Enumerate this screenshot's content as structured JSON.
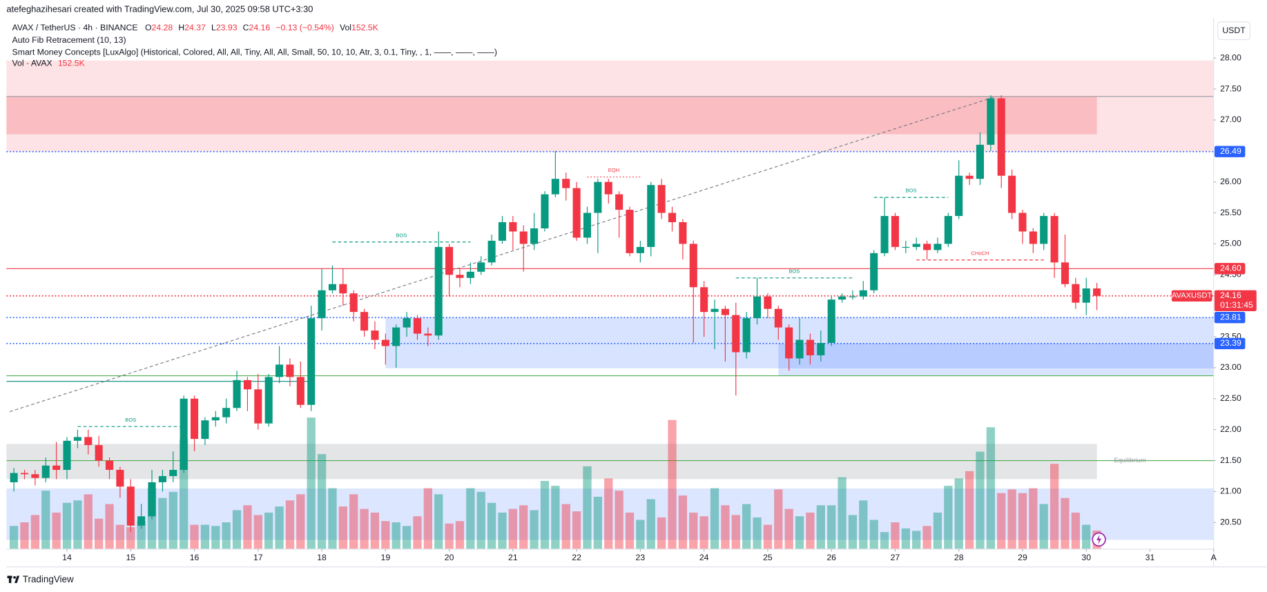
{
  "header": {
    "attribution": "atefeghazihesari created with TradingView.com, Jul 30, 2025 09:58 UTC+3:30",
    "symbol": "AVAX / TetherUS · 4h · BINANCE",
    "ohlc": [
      {
        "key": "O",
        "value": "24.28"
      },
      {
        "key": "H",
        "value": "24.37"
      },
      {
        "key": "L",
        "value": "23.93"
      },
      {
        "key": "C",
        "value": "24.16"
      }
    ],
    "change": "−0.13 (−0.54%)",
    "vol_key": "Vol",
    "vol_value": "152.5K",
    "indicators": [
      "Auto Fib Retracement (10, 13)",
      "Smart Money Concepts [LuxAlgo] (Historical, Colored, All, All, Tiny, All, All, Small, 50, 10, 10, Atr, 3, 0.1, Tiny, , 1, ——, ——, ——)"
    ],
    "vol_legend": "Vol · AVAX",
    "vol_legend_value": "152.5K"
  },
  "currency": "USDT",
  "brand": "TradingView",
  "chart_data": {
    "type": "candlestick",
    "symbol_label": "AVAXUSDT",
    "countdown": "01:31:45",
    "up_color": "#089981",
    "down_color": "#f23645",
    "open": [
      21.15,
      21.3,
      21.28,
      21.22,
      21.42,
      21.35,
      21.82,
      21.88,
      21.75,
      21.5,
      21.35,
      21.08,
      20.45,
      20.6,
      21.15,
      21.25,
      21.35,
      22.5,
      21.85,
      22.15,
      22.2,
      22.35,
      22.8,
      22.65,
      22.1,
      22.85,
      23.05,
      22.85,
      22.4,
      23.8,
      24.25,
      24.35,
      24.2,
      23.9,
      23.6,
      23.45,
      23.35,
      23.65,
      23.8,
      23.55,
      23.52,
      24.95,
      24.5,
      24.45,
      24.55,
      24.7,
      25.05,
      25.35,
      25.2,
      25.0,
      25.25,
      25.8,
      26.05,
      25.9,
      25.1,
      25.5,
      26.0,
      25.8,
      25.55,
      24.85,
      24.95,
      25.95,
      25.5,
      25.35,
      25.0,
      24.3,
      23.9,
      23.95,
      23.85,
      23.25,
      23.8,
      24.15,
      23.95,
      23.65,
      23.15,
      23.45,
      23.2,
      23.4,
      24.1,
      24.15,
      24.15,
      24.25,
      24.85,
      25.45,
      24.95,
      24.95,
      25.0,
      24.9,
      25.0,
      25.45,
      26.1,
      26.05,
      26.6,
      27.35,
      26.1,
      25.5,
      25.2,
      25.0,
      25.45,
      24.7,
      24.35,
      24.05,
      24.28
    ],
    "high": [
      21.38,
      21.35,
      21.35,
      21.55,
      21.8,
      21.88,
      22.0,
      22.0,
      21.9,
      21.55,
      21.4,
      21.2,
      20.8,
      21.35,
      21.35,
      21.65,
      22.55,
      22.55,
      22.2,
      22.3,
      22.5,
      22.95,
      22.85,
      22.9,
      22.9,
      23.35,
      23.15,
      23.1,
      24.0,
      24.6,
      24.65,
      24.6,
      24.25,
      23.95,
      23.75,
      23.55,
      23.7,
      23.9,
      23.85,
      23.65,
      25.2,
      25.0,
      24.6,
      24.7,
      24.8,
      25.15,
      25.45,
      25.45,
      25.3,
      25.5,
      25.85,
      26.5,
      26.15,
      26.0,
      25.6,
      26.05,
      26.05,
      25.85,
      25.6,
      25.05,
      26.0,
      26.05,
      25.6,
      25.4,
      25.05,
      24.4,
      24.1,
      24.0,
      24.05,
      23.9,
      24.45,
      24.2,
      24.0,
      23.7,
      23.8,
      23.55,
      23.6,
      24.15,
      24.2,
      24.25,
      24.4,
      24.9,
      25.75,
      25.5,
      25.05,
      25.1,
      25.05,
      25.1,
      25.5,
      26.35,
      26.15,
      26.8,
      27.4,
      27.4,
      26.2,
      25.55,
      25.25,
      25.5,
      25.5,
      25.15,
      24.45,
      24.45,
      24.37
    ],
    "low": [
      21.0,
      21.2,
      21.1,
      21.15,
      21.2,
      21.2,
      21.7,
      21.6,
      21.4,
      21.2,
      20.9,
      20.35,
      20.4,
      20.55,
      21.0,
      21.15,
      21.3,
      21.65,
      21.75,
      22.05,
      22.1,
      22.3,
      22.3,
      22.0,
      22.05,
      22.75,
      22.7,
      22.35,
      22.3,
      23.6,
      24.2,
      24.0,
      23.75,
      23.5,
      23.3,
      23.05,
      23.0,
      23.5,
      23.45,
      23.35,
      23.45,
      24.15,
      24.3,
      24.35,
      24.5,
      24.65,
      25.0,
      24.9,
      24.55,
      24.9,
      25.2,
      25.75,
      25.7,
      25.05,
      25.0,
      24.85,
      25.65,
      25.1,
      24.8,
      24.7,
      24.8,
      25.4,
      25.2,
      24.75,
      23.4,
      23.5,
      23.3,
      23.1,
      22.55,
      23.15,
      23.7,
      23.8,
      23.45,
      22.95,
      23.05,
      23.05,
      23.1,
      23.35,
      24.05,
      24.1,
      24.1,
      24.2,
      24.8,
      24.9,
      24.85,
      24.9,
      24.75,
      24.85,
      24.95,
      25.4,
      25.95,
      25.95,
      26.5,
      25.9,
      25.4,
      25.0,
      24.85,
      24.9,
      24.45,
      24.3,
      23.95,
      23.85,
      23.93
    ],
    "close": [
      21.3,
      21.28,
      21.22,
      21.42,
      21.35,
      21.82,
      21.88,
      21.75,
      21.5,
      21.35,
      21.08,
      20.45,
      20.6,
      21.15,
      21.25,
      21.35,
      22.5,
      21.85,
      22.15,
      22.2,
      22.35,
      22.8,
      22.65,
      22.1,
      22.85,
      23.05,
      22.85,
      22.4,
      23.8,
      24.25,
      24.35,
      24.2,
      23.9,
      23.6,
      23.45,
      23.35,
      23.65,
      23.8,
      23.55,
      23.52,
      24.95,
      24.5,
      24.45,
      24.55,
      24.7,
      25.05,
      25.35,
      25.2,
      25.0,
      25.25,
      25.8,
      26.05,
      25.9,
      25.1,
      25.5,
      26.0,
      25.8,
      25.55,
      24.85,
      24.95,
      25.95,
      25.5,
      25.35,
      25.0,
      24.3,
      23.9,
      23.95,
      23.85,
      23.25,
      23.8,
      24.15,
      23.95,
      23.65,
      23.15,
      23.45,
      23.2,
      23.4,
      24.1,
      24.15,
      24.15,
      24.25,
      24.85,
      25.45,
      24.95,
      24.95,
      25.0,
      24.9,
      25.0,
      25.45,
      26.1,
      26.05,
      26.6,
      27.35,
      26.1,
      25.5,
      25.2,
      25.0,
      25.45,
      24.7,
      24.35,
      24.05,
      24.28,
      24.16
    ],
    "volume": [
      190000,
      220000,
      280000,
      480000,
      300000,
      380000,
      400000,
      450000,
      250000,
      370000,
      200000,
      180000,
      230000,
      500000,
      420000,
      470000,
      900000,
      200000,
      200000,
      190000,
      220000,
      320000,
      360000,
      280000,
      300000,
      350000,
      400000,
      450000,
      1080000,
      780000,
      500000,
      350000,
      450000,
      330000,
      300000,
      230000,
      220000,
      190000,
      270000,
      500000,
      450000,
      210000,
      230000,
      500000,
      470000,
      380000,
      300000,
      330000,
      360000,
      320000,
      560000,
      520000,
      370000,
      310000,
      680000,
      430000,
      580000,
      480000,
      300000,
      240000,
      410000,
      260000,
      1060000,
      440000,
      300000,
      270000,
      500000,
      360000,
      280000,
      370000,
      260000,
      200000,
      490000,
      330000,
      270000,
      300000,
      360000,
      360000,
      590000,
      280000,
      400000,
      240000,
      140000,
      220000,
      170000,
      150000,
      190000,
      300000,
      520000,
      580000,
      640000,
      800000,
      1000000,
      460000,
      490000,
      460000,
      500000,
      370000,
      700000,
      420000,
      300000,
      200000,
      152500
    ],
    "xlim": [
      -0.7,
      113
    ],
    "ylim": [
      20.07,
      28.65
    ],
    "volume_lim": [
      0,
      4360000
    ],
    "xticks": [
      {
        "value": 5,
        "label": "14"
      },
      {
        "value": 11,
        "label": "15"
      },
      {
        "value": 17,
        "label": "16"
      },
      {
        "value": 23,
        "label": "17"
      },
      {
        "value": 29,
        "label": "18"
      },
      {
        "value": 35,
        "label": "19"
      },
      {
        "value": 41,
        "label": "20"
      },
      {
        "value": 47,
        "label": "21"
      },
      {
        "value": 53,
        "label": "22"
      },
      {
        "value": 59,
        "label": "23"
      },
      {
        "value": 65,
        "label": "24"
      },
      {
        "value": 71,
        "label": "25"
      },
      {
        "value": 77,
        "label": "26"
      },
      {
        "value": 83,
        "label": "27"
      },
      {
        "value": 89,
        "label": "28"
      },
      {
        "value": 95,
        "label": "29"
      },
      {
        "value": 101,
        "label": "30"
      },
      {
        "value": 107,
        "label": "31"
      },
      {
        "value": 113,
        "label": "A"
      }
    ],
    "yticks": [
      {
        "value": 28,
        "label": "28.00"
      },
      {
        "value": 27.5,
        "label": "27.50"
      },
      {
        "value": 27,
        "label": "27.00"
      },
      {
        "value": 26,
        "label": "26.00"
      },
      {
        "value": 25.5,
        "label": "25.50"
      },
      {
        "value": 25,
        "label": "25.00"
      },
      {
        "value": 24.5,
        "label": "24.50"
      },
      {
        "value": 23.5,
        "label": "23.50"
      },
      {
        "value": 23,
        "label": "23.00"
      },
      {
        "value": 22.5,
        "label": "22.50"
      },
      {
        "value": 22,
        "label": "22.00"
      },
      {
        "value": 21.5,
        "label": "21.50"
      },
      {
        "value": 21,
        "label": "21.00"
      },
      {
        "value": 20.5,
        "label": "20.50"
      }
    ],
    "zones": [
      {
        "top": 27.96,
        "bottom": 26.49,
        "from": -0.7,
        "to": 113,
        "color": "rgba(242,54,69,0.14)"
      },
      {
        "top": 27.38,
        "bottom": 26.77,
        "from": -0.7,
        "to": 102,
        "color": "rgba(242,54,69,0.22)"
      },
      {
        "top": 23.81,
        "bottom": 22.99,
        "from": 35,
        "to": 113,
        "color": "rgba(41,98,255,0.18)"
      },
      {
        "top": 23.39,
        "bottom": 22.87,
        "from": 72,
        "to": 113,
        "color": "rgba(41,98,255,0.18)"
      },
      {
        "top": 21.77,
        "bottom": 21.2,
        "from": -0.7,
        "to": 102,
        "color": "rgba(120,123,134,0.2)"
      },
      {
        "top": 21.05,
        "bottom": 20.22,
        "from": -0.7,
        "to": 113,
        "color": "rgba(41,98,255,0.16)"
      }
    ],
    "levels": [
      {
        "price": 27.38,
        "from": -0.7,
        "to": 113,
        "color": "#9598a1",
        "style": "solid"
      },
      {
        "price": 26.49,
        "from": -0.7,
        "to": 113,
        "color": "#2962ff",
        "style": "dotted"
      },
      {
        "price": 24.6,
        "from": -0.7,
        "to": 113,
        "color": "#f23645",
        "style": "solid"
      },
      {
        "price": 24.16,
        "from": -0.7,
        "to": 113,
        "color": "#f23645",
        "style": "dotted"
      },
      {
        "price": 23.81,
        "from": -0.7,
        "to": 113,
        "color": "#2962ff",
        "style": "dotted"
      },
      {
        "price": 23.39,
        "from": -0.7,
        "to": 113,
        "color": "#2962ff",
        "style": "dotted"
      },
      {
        "price": 22.87,
        "from": -0.7,
        "to": 113,
        "color": "#4caf50",
        "style": "solid"
      },
      {
        "price": 22.78,
        "from": -0.7,
        "to": 28,
        "color": "#00897b",
        "style": "solid"
      },
      {
        "price": 21.5,
        "from": -0.7,
        "to": 113,
        "color": "#4caf50",
        "style": "solid"
      }
    ],
    "fib_line": {
      "from": -0.4,
      "to": 92.5,
      "start": 22.29,
      "end": 27.38
    },
    "structures": [
      {
        "text": "BOS",
        "price": 22.05,
        "from": 6,
        "to": 16,
        "color": "#089981",
        "style": "dashed"
      },
      {
        "text": "BOS",
        "price": 25.03,
        "from": 30,
        "to": 43,
        "color": "#089981",
        "style": "dashed"
      },
      {
        "text": "EQH",
        "price": 26.08,
        "from": 54,
        "to": 59,
        "color": "#f23645",
        "style": "dotted"
      },
      {
        "text": "BOS",
        "price": 24.45,
        "from": 68,
        "to": 79,
        "color": "#089981",
        "style": "dashed"
      },
      {
        "text": "BOS",
        "price": 25.75,
        "from": 81,
        "to": 88,
        "color": "#089981",
        "style": "dashed"
      },
      {
        "text": "CHoCH",
        "price": 24.74,
        "from": 85,
        "to": 97,
        "color": "#f23645",
        "style": "dashed"
      }
    ],
    "equilibrium": {
      "text": "Equilibrium",
      "price": 21.5,
      "at": 103
    },
    "price_labels": [
      {
        "value": 26.49,
        "label": "26.49",
        "color": "#2962ff"
      },
      {
        "value": 24.6,
        "label": "24.60",
        "color": "#f23645"
      },
      {
        "value": 23.81,
        "label": "23.81",
        "color": "#2962ff"
      },
      {
        "value": 23.39,
        "label": "23.39",
        "color": "#2962ff"
      }
    ],
    "last_price": {
      "value": 24.16,
      "label": "24.16",
      "color": "#f23645"
    }
  }
}
